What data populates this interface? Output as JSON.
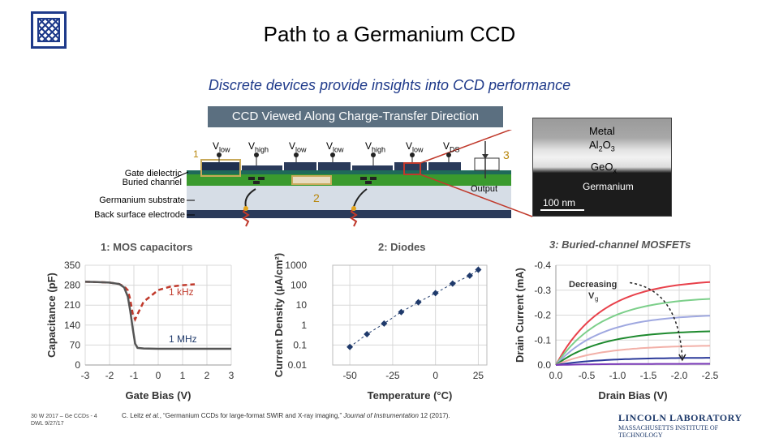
{
  "header": {
    "title": "Path to a Germanium CCD",
    "subtitle": "Discrete devices provide insights into CCD performance"
  },
  "ccd": {
    "banner": "CCD Viewed Along Charge-Transfer Direction",
    "gate_labels": [
      "V",
      "V",
      "V",
      "V",
      "V",
      "V",
      "V"
    ],
    "gate_subs": [
      "low",
      "high",
      "low",
      "low",
      "high",
      "low",
      "DS"
    ],
    "label_gate_dielectric": "Gate dielectric",
    "label_buried_channel": "Buried channel",
    "label_substrate": "Germanium substrate",
    "label_back_electrode": "Back surface electrode",
    "marker_1": "1",
    "marker_2": "2",
    "marker_3": "3",
    "output_label": "Output"
  },
  "tem": {
    "metal": "Metal",
    "al2o3": "Al",
    "al2o3_sub1": "2",
    "al2o3_o": "O",
    "al2o3_sub2": "3",
    "geo": "GeO",
    "geo_sub": "x",
    "germanium": "Germanium",
    "scale": "100 nm"
  },
  "chart_data": [
    {
      "type": "line",
      "title": "1: MOS capacitors",
      "xlabel": "Gate Bias (V)",
      "ylabel": "Capacitance (pF)",
      "xlim": [
        -3,
        3
      ],
      "ylim": [
        0,
        350
      ],
      "x_ticks": [
        "-3",
        "-2",
        "-1",
        "0",
        "1",
        "2",
        "3"
      ],
      "y_ticks": [
        "0",
        "70",
        "140",
        "210",
        "280",
        "350"
      ],
      "grid": true,
      "series": [
        {
          "name": "1 kHz",
          "color": "#c0392b",
          "style": "dashed",
          "x": [
            -3,
            -2.5,
            -2,
            -1.6,
            -1.4,
            -1.25,
            -1.15,
            -1.05,
            -0.95,
            -0.85,
            -0.6,
            0,
            0.5,
            1,
            1.5
          ],
          "y": [
            292,
            291,
            289,
            284,
            276,
            262,
            230,
            180,
            160,
            178,
            222,
            263,
            275,
            280,
            283
          ]
        },
        {
          "name": "1 MHz",
          "color": "#555555",
          "style": "solid",
          "x": [
            -3,
            -2.5,
            -2,
            -1.6,
            -1.4,
            -1.25,
            -1.15,
            -1.05,
            -0.95,
            -0.85,
            -0.6,
            0,
            1,
            3
          ],
          "y": [
            292,
            291,
            289,
            284,
            272,
            240,
            190,
            130,
            75,
            60,
            58,
            57,
            57,
            57
          ]
        }
      ]
    },
    {
      "type": "scatter",
      "title": "2: Diodes",
      "xlabel": "Temperature (°C)",
      "ylabel": "Current Density (µA/cm²)",
      "yscale": "log",
      "xlim": [
        -60,
        30
      ],
      "ylim": [
        0.01,
        1000
      ],
      "x_ticks": [
        "-50",
        "-25",
        "0",
        "25"
      ],
      "y_ticks": [
        "0.01",
        "0.1",
        "1",
        "10",
        "100",
        "1000"
      ],
      "grid": true,
      "series": [
        {
          "name": "",
          "color": "#1f3a6b",
          "x": [
            -50,
            -40,
            -30,
            -20,
            -10,
            0,
            10,
            20,
            25
          ],
          "y": [
            0.08,
            0.35,
            1.2,
            4.5,
            14,
            40,
            120,
            300,
            600
          ]
        }
      ]
    },
    {
      "type": "line",
      "title": "3: Buried-channel MOSFETs",
      "xlabel": "Drain Bias (V)",
      "ylabel": "Drain Current (mA)",
      "xlim": [
        0,
        -2.5
      ],
      "ylim": [
        0,
        -0.4
      ],
      "x_ticks": [
        "0.0",
        "-0.5",
        "-1.0",
        "-1.5",
        "-2.0",
        "-2.5"
      ],
      "y_ticks": [
        "0.0",
        "-0.1",
        "-0.2",
        "-0.3",
        "-0.4"
      ],
      "annotation": "Decreasing",
      "annotation_var": "V",
      "annotation_sub": "g",
      "grid": true,
      "series": [
        {
          "name": "",
          "color": "#e8414b",
          "saturation": -0.345
        },
        {
          "name": "",
          "color": "#7ccf8a",
          "saturation": -0.275
        },
        {
          "name": "",
          "color": "#9fa8e0",
          "saturation": -0.205
        },
        {
          "name": "",
          "color": "#1e8a2e",
          "saturation": -0.14
        },
        {
          "name": "",
          "color": "#f2b0a8",
          "saturation": -0.08
        },
        {
          "name": "",
          "color": "#2b3a9a",
          "saturation": -0.03
        },
        {
          "name": "",
          "color": "#7a3ab8",
          "saturation": -0.005
        }
      ]
    }
  ],
  "footer": {
    "line1": "30 W 2017 – Ge CCDs - 4",
    "line2": "DWL 9/27/17",
    "citation_prefix": "C. Leitz ",
    "citation_etal": "et al.",
    "citation_mid": ", “Germanium CCDs for large-format SWIR and X-ray imaging,” ",
    "citation_journal": "Journal of Instrumentation",
    "citation_suffix": " 12 (2017).",
    "lab_name": "LINCOLN LABORATORY",
    "lab_sub": "MASSACHUSETTS INSTITUTE OF TECHNOLOGY"
  }
}
